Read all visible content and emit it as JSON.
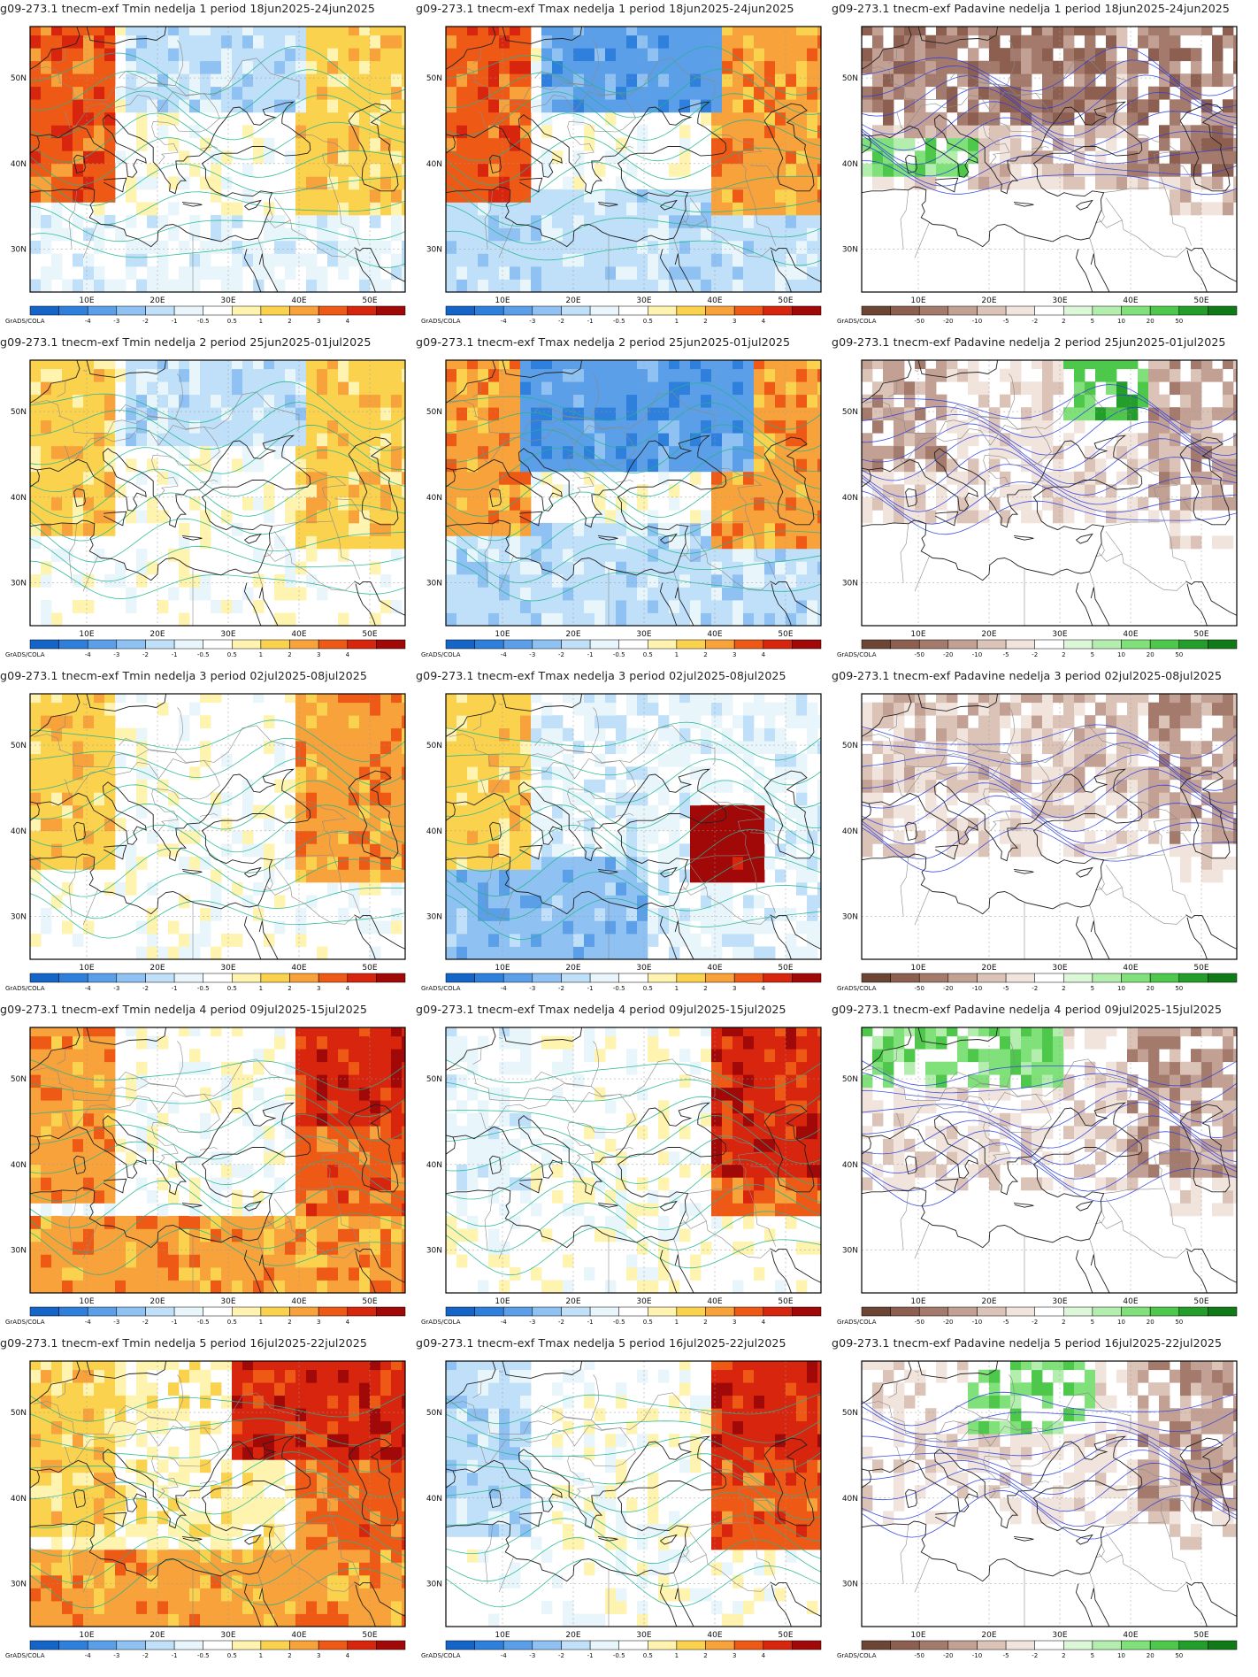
{
  "colorbars": {
    "temperature": {
      "labels": [
        "-4",
        "-3",
        "-2",
        "-1",
        "-0.5",
        "0.5",
        "1",
        "2",
        "3",
        "4"
      ],
      "colors": [
        "#1565c8",
        "#2f7fdc",
        "#5b9fe8",
        "#8fc2f2",
        "#bfe0f8",
        "#e8f6fc",
        "#ffffff",
        "#fff3b0",
        "#fbd24e",
        "#f7a23a",
        "#ee5a16",
        "#d8250e",
        "#a10808"
      ]
    },
    "precip": {
      "labels": [
        "-50",
        "-20",
        "-10",
        "-5",
        "-2",
        "2",
        "5",
        "10",
        "20",
        "50"
      ],
      "colors": [
        "#6d4535",
        "#8c5f50",
        "#a47a6c",
        "#c2a094",
        "#dcc3b8",
        "#f1e4dc",
        "#ffffff",
        "#dcf6d8",
        "#b4eeae",
        "#80e07a",
        "#4ec84a",
        "#239e2a",
        "#107a18"
      ]
    }
  },
  "credit": "GrADS/COLA",
  "axes": {
    "x_ticks": [
      "10E",
      "20E",
      "30E",
      "40E",
      "50E"
    ],
    "y_ticks": [
      "50N",
      "40N",
      "30N"
    ]
  },
  "panels": [
    {
      "title": "g09-273.1 tnecm-exf Tmin nedelja 1 period 18jun2025-24jun2025",
      "var": "tmin",
      "week": 1
    },
    {
      "title": "g09-273.1 tnecm-exf Tmax nedelja 1 period 18jun2025-24jun2025",
      "var": "tmax",
      "week": 1
    },
    {
      "title": "g09-273.1 tnecm-exf Padavine nedelja 1 period 18jun2025-24jun2025",
      "var": "precip",
      "week": 1
    },
    {
      "title": "g09-273.1 tnecm-exf Tmin nedelja 2 period 25jun2025-01jul2025",
      "var": "tmin",
      "week": 2
    },
    {
      "title": "g09-273.1 tnecm-exf Tmax nedelja 2 period 25jun2025-01jul2025",
      "var": "tmax",
      "week": 2
    },
    {
      "title": "g09-273.1 tnecm-exf Padavine nedelja 2 period 25jun2025-01jul2025",
      "var": "precip",
      "week": 2
    },
    {
      "title": "g09-273.1 tnecm-exf Tmin nedelja 3 period 02jul2025-08jul2025",
      "var": "tmin",
      "week": 3
    },
    {
      "title": "g09-273.1 tnecm-exf Tmax nedelja 3 period 02jul2025-08jul2025",
      "var": "tmax",
      "week": 3
    },
    {
      "title": "g09-273.1 tnecm-exf Padavine nedelja 3 period 02jul2025-08jul2025",
      "var": "precip",
      "week": 3
    },
    {
      "title": "g09-273.1 tnecm-exf Tmin nedelja 4 period 09jul2025-15jul2025",
      "var": "tmin",
      "week": 4
    },
    {
      "title": "g09-273.1 tnecm-exf Tmax nedelja 4 period 09jul2025-15jul2025",
      "var": "tmax",
      "week": 4
    },
    {
      "title": "g09-273.1 tnecm-exf Padavine nedelja 4 period 09jul2025-15jul2025",
      "var": "precip",
      "week": 4
    },
    {
      "title": "g09-273.1 tnecm-exf Tmin nedelja 5 period 16jul2025-22jul2025",
      "var": "tmin",
      "week": 5
    },
    {
      "title": "g09-273.1 tnecm-exf Tmax nedelja 5 period 16jul2025-22jul2025",
      "var": "tmax",
      "week": 5
    },
    {
      "title": "g09-273.1 tnecm-exf Padavine nedelja 5 period 16jul2025-22jul2025",
      "var": "precip",
      "week": 5
    }
  ]
}
